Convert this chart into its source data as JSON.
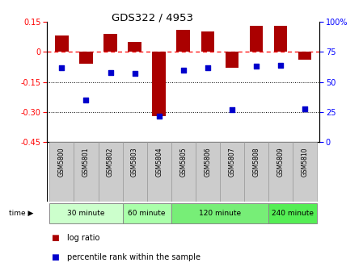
{
  "title": "GDS322 / 4953",
  "samples": [
    "GSM5800",
    "GSM5801",
    "GSM5802",
    "GSM5803",
    "GSM5804",
    "GSM5805",
    "GSM5806",
    "GSM5807",
    "GSM5808",
    "GSM5809",
    "GSM5810"
  ],
  "log_ratio": [
    0.08,
    -0.06,
    0.09,
    0.05,
    -0.32,
    0.11,
    0.1,
    -0.08,
    0.13,
    0.13,
    -0.04
  ],
  "percentile": [
    62,
    35,
    58,
    57,
    22,
    60,
    62,
    27,
    63,
    64,
    28
  ],
  "time_groups": [
    {
      "label": "30 minute",
      "start": 0,
      "end": 3,
      "color": "#ccffcc"
    },
    {
      "label": "60 minute",
      "start": 3,
      "end": 5,
      "color": "#aaffaa"
    },
    {
      "label": "120 minute",
      "start": 5,
      "end": 9,
      "color": "#77ee77"
    },
    {
      "label": "240 minute",
      "start": 9,
      "end": 11,
      "color": "#55ee55"
    }
  ],
  "bar_color": "#aa0000",
  "dot_color": "#0000cc",
  "left_ylim": [
    -0.45,
    0.15
  ],
  "right_ylim": [
    0,
    100
  ],
  "left_yticks": [
    0.15,
    0,
    -0.15,
    -0.3,
    -0.45
  ],
  "right_yticks": [
    100,
    75,
    50,
    25,
    0
  ],
  "bg_color": "#ffffff",
  "sample_box_color": "#cccccc",
  "group_colors": [
    "#ccffcc",
    "#aaffaa",
    "#77ee77",
    "#55ee55"
  ]
}
